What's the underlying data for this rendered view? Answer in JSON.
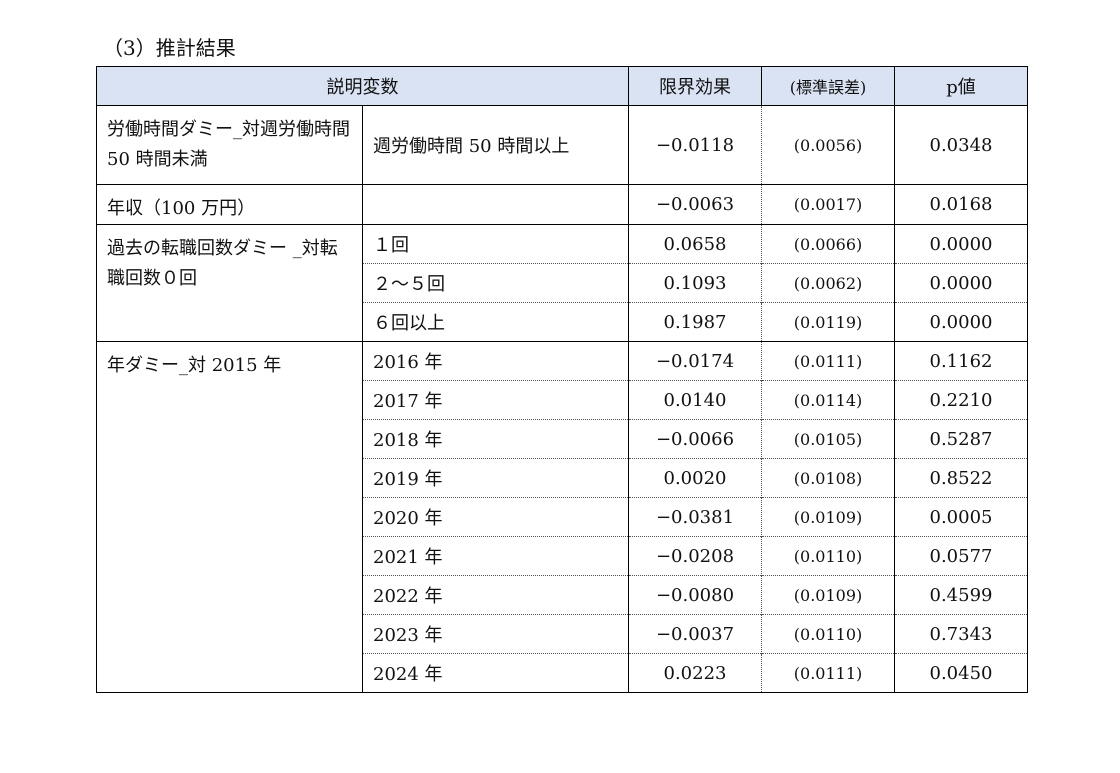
{
  "title": "（3）推計結果",
  "table": {
    "header": [
      "説明変数",
      "限界効果",
      "(標準誤差)",
      "p値"
    ],
    "groups": [
      {
        "label": "労働時間ダミー_対週労働時間 50 時間未満",
        "rows": [
          {
            "sub": "週労働時間 50 時間以上",
            "effect": "−0.0118",
            "se": "(0.0056)",
            "p": "0.0348"
          }
        ]
      },
      {
        "label": "年収（100 万円）",
        "rows": [
          {
            "effect": "−0.0063",
            "se": "(0.0017)",
            "p": "0.0168"
          }
        ]
      },
      {
        "label": "過去の転職回数ダミー _対転職回数０回",
        "rows": [
          {
            "sub": "１回",
            "effect": "0.0658",
            "se": "(0.0066)",
            "p": "0.0000"
          },
          {
            "sub": "２～５回",
            "effect": "0.1093",
            "se": "(0.0062)",
            "p": "0.0000"
          },
          {
            "sub": "６回以上",
            "effect": "0.1987",
            "se": "(0.0119)",
            "p": "0.0000"
          }
        ]
      },
      {
        "label": "年ダミー_対 2015 年",
        "rows": [
          {
            "sub": "2016 年",
            "effect": "−0.0174",
            "se": "(0.0111)",
            "p": "0.1162"
          },
          {
            "sub": "2017 年",
            "effect": "0.0140",
            "se": "(0.0114)",
            "p": "0.2210"
          },
          {
            "sub": "2018 年",
            "effect": "−0.0066",
            "se": "(0.0105)",
            "p": "0.5287"
          },
          {
            "sub": "2019 年",
            "effect": "0.0020",
            "se": "(0.0108)",
            "p": "0.8522"
          },
          {
            "sub": "2020 年",
            "effect": "−0.0381",
            "se": "(0.0109)",
            "p": "0.0005"
          },
          {
            "sub": "2021 年",
            "effect": "−0.0208",
            "se": "(0.0110)",
            "p": "0.0577"
          },
          {
            "sub": "2022 年",
            "effect": "−0.0080",
            "se": "(0.0109)",
            "p": "0.4599"
          },
          {
            "sub": "2023 年",
            "effect": "−0.0037",
            "se": "(0.0110)",
            "p": "0.7343"
          },
          {
            "sub": "2024 年",
            "effect": "0.0223",
            "se": "(0.0111)",
            "p": "0.0450"
          }
        ]
      }
    ]
  }
}
